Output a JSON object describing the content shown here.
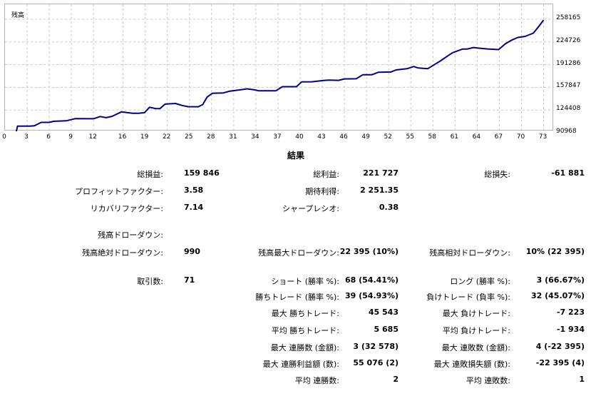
{
  "chart_data": {
    "type": "line",
    "title": "残高",
    "x_ticks": [
      "0",
      "3",
      "6",
      "9",
      "12",
      "16",
      "19",
      "22",
      "25",
      "28",
      "31",
      "34",
      "37",
      "40",
      "43",
      "46",
      "49",
      "52",
      "55",
      "58",
      "61",
      "64",
      "67",
      "70",
      "73"
    ],
    "y_ticks": [
      "258165",
      "224726",
      "191286",
      "157847",
      "124408",
      "90968"
    ],
    "ylim": [
      90968,
      258165
    ],
    "xlim": [
      0,
      74.4
    ],
    "grid": true,
    "series": [
      {
        "color": "#00008c",
        "points": [
          [
            1.5,
            90968
          ],
          [
            1.7,
            100800
          ],
          [
            3.4,
            100800
          ],
          [
            4.0,
            101300
          ],
          [
            4.3,
            103000
          ],
          [
            4.9,
            106200
          ],
          [
            6.0,
            106200
          ],
          [
            6.6,
            107800
          ],
          [
            8.3,
            108500
          ],
          [
            9.5,
            111700
          ],
          [
            12.0,
            111600
          ],
          [
            12.9,
            114800
          ],
          [
            13.7,
            113200
          ],
          [
            14.5,
            115000
          ],
          [
            15.8,
            121800
          ],
          [
            16.6,
            120500
          ],
          [
            17.3,
            119600
          ],
          [
            18.1,
            119600
          ],
          [
            18.9,
            120500
          ],
          [
            19.6,
            128500
          ],
          [
            20.4,
            126600
          ],
          [
            21.0,
            126400
          ],
          [
            21.7,
            133100
          ],
          [
            23.1,
            134100
          ],
          [
            24.0,
            131100
          ],
          [
            24.8,
            129400
          ],
          [
            26.2,
            129200
          ],
          [
            26.8,
            132500
          ],
          [
            27.4,
            143700
          ],
          [
            28.1,
            149000
          ],
          [
            29.6,
            149600
          ],
          [
            30.4,
            152100
          ],
          [
            31.8,
            154100
          ],
          [
            32.8,
            155600
          ],
          [
            33.9,
            154100
          ],
          [
            34.4,
            152700
          ],
          [
            36.7,
            152700
          ],
          [
            37.6,
            158800
          ],
          [
            39.5,
            158800
          ],
          [
            40.2,
            165800
          ],
          [
            41.6,
            166000
          ],
          [
            43.2,
            168000
          ],
          [
            43.9,
            168600
          ],
          [
            45.2,
            168200
          ],
          [
            46.0,
            170300
          ],
          [
            47.6,
            170500
          ],
          [
            48.5,
            176400
          ],
          [
            49.7,
            176400
          ],
          [
            50.6,
            180000
          ],
          [
            52.3,
            180500
          ],
          [
            53.0,
            183500
          ],
          [
            54.5,
            185300
          ],
          [
            55.4,
            188500
          ],
          [
            56.0,
            186300
          ],
          [
            57.3,
            185300
          ],
          [
            58.3,
            192000
          ],
          [
            59.0,
            196600
          ],
          [
            60.1,
            204900
          ],
          [
            60.7,
            209100
          ],
          [
            62.0,
            214200
          ],
          [
            62.6,
            214200
          ],
          [
            63.5,
            216500
          ],
          [
            64.0,
            215900
          ],
          [
            65.4,
            214400
          ],
          [
            66.9,
            213500
          ],
          [
            67.8,
            221900
          ],
          [
            68.6,
            227000
          ],
          [
            69.5,
            231400
          ],
          [
            70.5,
            232900
          ],
          [
            71.6,
            237700
          ],
          [
            72.3,
            247000
          ],
          [
            73.0,
            257000
          ]
        ]
      }
    ]
  },
  "results": {
    "title": "結果",
    "rows": [
      {
        "a_label": "総損益:",
        "a_value": "159 846",
        "b_label": "総利益:",
        "b_value": "221 727",
        "c_label": "総損失:",
        "c_value": "-61 881"
      },
      {
        "a_label": "プロフィットファクター:",
        "a_value": "3.58",
        "b_label": "期待利得:",
        "b_value": "2 251.35"
      },
      {
        "a_label": "リカバリファクター:",
        "a_value": "7.14",
        "b_label": "シャープレシオ:",
        "b_value": "0.38"
      },
      {
        "a_label": "残高ドローダウン:"
      },
      {
        "a_label": "残高絶対ドローダウン:",
        "a_value": "990",
        "b_label": "残高最大ドローダウン:",
        "b_value": "22 395 (10%)",
        "c_label": "残高相対ドローダウン:",
        "c_value": "10% (22 395)"
      },
      {
        "a_label": "取引数:",
        "a_value": "71",
        "b_label": "ショート (勝率 %):",
        "b_value": "68 (54.41%)",
        "c_label": "ロング (勝率 %):",
        "c_value": "3 (66.67%)"
      },
      {
        "b_label": "勝ちトレード (勝率 %):",
        "b_value": "39 (54.93%)",
        "c_label": "負けトレード (負率 %):",
        "c_value": "32 (45.07%)"
      },
      {
        "b_label": "最大 勝ちトレード:",
        "b_value": "45 543",
        "c_label": "最大 負けトレード:",
        "c_value": "-7 223"
      },
      {
        "b_label": "平均 勝ちトレード:",
        "b_value": "5 685",
        "c_label": "平均 負けトレード:",
        "c_value": "-1 934"
      },
      {
        "b_label": "最大 連勝数 (金額):",
        "b_value": "3 (32 578)",
        "c_label": "最大 連敗数 (金額):",
        "c_value": "4 (-22 395)"
      },
      {
        "b_label": "最大 連勝利益額 (数):",
        "b_value": "55 076 (2)",
        "c_label": "最大 連敗損失額 (数):",
        "c_value": "-22 395 (4)"
      },
      {
        "b_label": "平均 連勝数:",
        "b_value": "2",
        "c_label": "平均 連敗数:",
        "c_value": "1"
      }
    ]
  }
}
